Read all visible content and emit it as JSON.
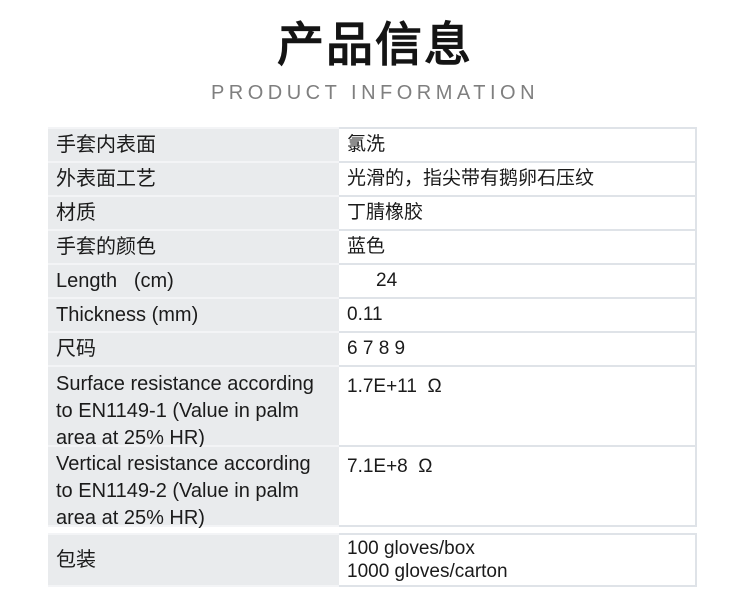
{
  "header": {
    "title_zh": "产品信息",
    "title_en": "PRODUCT INFORMATION"
  },
  "table": {
    "rows": [
      {
        "label": "手套内表面",
        "value": "氯洗"
      },
      {
        "label": "外表面工艺",
        "value": "光滑的，指尖带有鹅卵石压纹"
      },
      {
        "label": "材质",
        "value": "丁腈橡胶"
      },
      {
        "label": "手套的颜色",
        "value": "蓝色"
      },
      {
        "label": "Length   (cm)",
        "value": "24"
      },
      {
        "label": "Thickness (mm)",
        "value": "0.11"
      },
      {
        "label": "尺码",
        "value": "6 7 8 9"
      },
      {
        "label": "Surface resistance according\nto EN1149-1 (Value in palm\narea at 25% HR)",
        "value": "1.7E+11  Ω"
      },
      {
        "label": "Vertical resistance according\nto EN1149-2 (Value in palm\narea at 25% HR)",
        "value": "7.1E+8  Ω"
      },
      {
        "label": "包装",
        "value": "100 gloves/box\n1000 gloves/carton"
      }
    ]
  },
  "colors": {
    "text": "#1b1b1b",
    "subtitle": "#7f7f7f",
    "cellbg": "#e9ebed",
    "border-on-white": "#dfe3e8",
    "border-on-gray": "#f3f4f6"
  }
}
